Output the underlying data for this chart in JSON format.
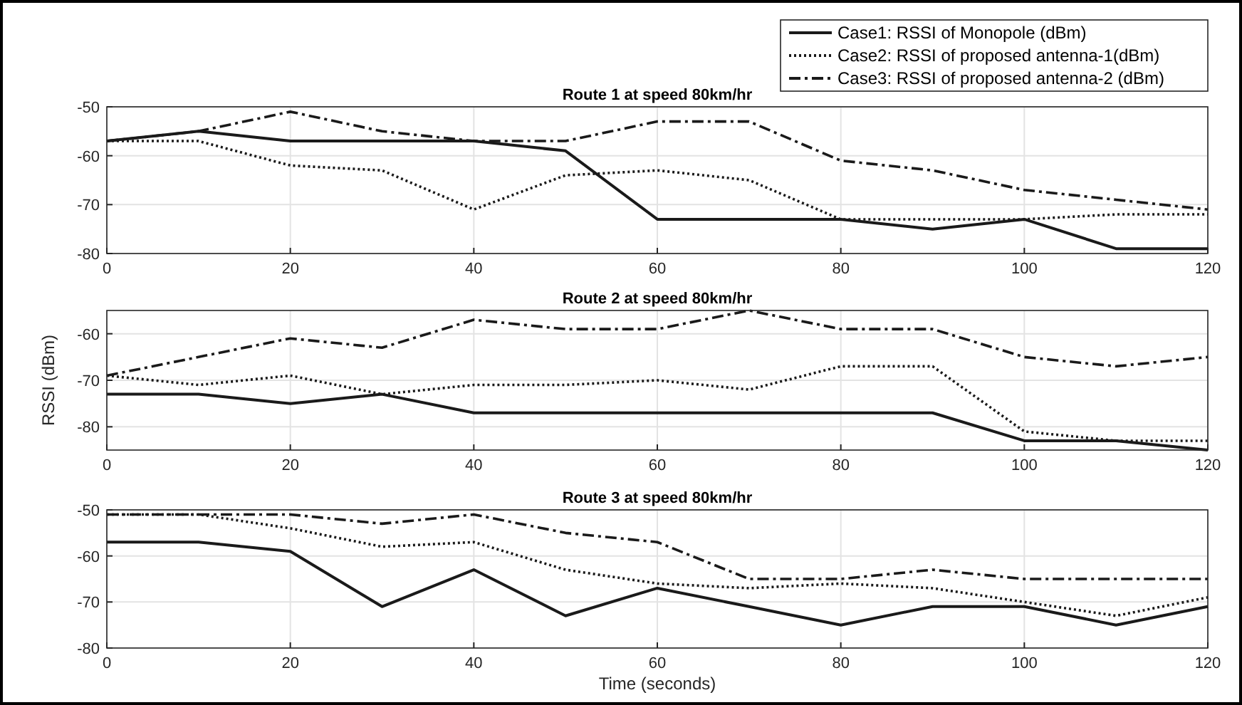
{
  "chart_data": [
    {
      "type": "line",
      "title": "Route 1 at speed 80km/hr",
      "x": [
        0,
        10,
        20,
        30,
        40,
        50,
        60,
        70,
        80,
        90,
        100,
        110,
        120
      ],
      "xlim": [
        0,
        120
      ],
      "xticks": [
        0,
        20,
        40,
        60,
        80,
        100,
        120
      ],
      "ylim": [
        -80,
        -50
      ],
      "yticks": [
        -80,
        -70,
        -60,
        -50
      ],
      "grid": true,
      "legend": "top right",
      "marker": "none",
      "series": [
        {
          "name": "Case1: RSSI of Monopole (dBm)",
          "color": "#1a1a1a",
          "line_style": "solid",
          "values": [
            -57,
            -55,
            -57,
            -57,
            -57,
            -59,
            -73,
            -73,
            -73,
            -75,
            -73,
            -79,
            -79
          ]
        },
        {
          "name": "Case2: RSSI of proposed antenna-1(dBm)",
          "color": "#1a1a1a",
          "line_style": "dotted",
          "values": [
            -57,
            -57,
            -62,
            -63,
            -71,
            -64,
            -63,
            -65,
            -73,
            -73,
            -73,
            -72,
            -72
          ]
        },
        {
          "name": "Case3: RSSI of proposed antenna-2 (dBm)",
          "color": "#1a1a1a",
          "line_style": "dashed",
          "values": [
            -57,
            -55,
            -51,
            -55,
            -57,
            -57,
            -53,
            -53,
            -61,
            -63,
            -67,
            -69,
            -71
          ]
        }
      ]
    },
    {
      "type": "line",
      "title": "Route 2 at speed 80km/hr",
      "ylabel": "RSSI (dBm)",
      "x": [
        0,
        10,
        20,
        30,
        40,
        50,
        60,
        70,
        80,
        90,
        100,
        110,
        120
      ],
      "xlim": [
        0,
        120
      ],
      "xticks": [
        0,
        20,
        40,
        60,
        80,
        100,
        120
      ],
      "ylim": [
        -85,
        -55
      ],
      "yticks": [
        -80,
        -70,
        -60
      ],
      "grid": true,
      "marker": "none",
      "series": [
        {
          "color": "#1a1a1a",
          "line_style": "solid",
          "values": [
            -73,
            -73,
            -75,
            -73,
            -77,
            -77,
            -77,
            -77,
            -77,
            -77,
            -83,
            -83,
            -85
          ]
        },
        {
          "color": "#1a1a1a",
          "line_style": "dotted",
          "values": [
            -69,
            -71,
            -69,
            -73,
            -71,
            -71,
            -70,
            -72,
            -67,
            -67,
            -81,
            -83,
            -83
          ]
        },
        {
          "color": "#1a1a1a",
          "line_style": "dashed",
          "values": [
            -69,
            -65,
            -61,
            -63,
            -57,
            -59,
            -59,
            -55,
            -59,
            -59,
            -65,
            -67,
            -65
          ]
        }
      ]
    },
    {
      "type": "line",
      "title": "Route 3 at speed 80km/hr",
      "xlabel": "Time (seconds)",
      "x": [
        0,
        10,
        20,
        30,
        40,
        50,
        60,
        70,
        80,
        90,
        100,
        110,
        120
      ],
      "xlim": [
        0,
        120
      ],
      "xticks": [
        0,
        20,
        40,
        60,
        80,
        100,
        120
      ],
      "ylim": [
        -80,
        -50
      ],
      "yticks": [
        -80,
        -70,
        -60,
        -50
      ],
      "grid": true,
      "marker": "none",
      "series": [
        {
          "color": "#1a1a1a",
          "line_style": "solid",
          "values": [
            -57,
            -57,
            -59,
            -71,
            -63,
            -73,
            -67,
            -71,
            -75,
            -71,
            -71,
            -75,
            -71
          ]
        },
        {
          "color": "#1a1a1a",
          "line_style": "dotted",
          "values": [
            -51,
            -51,
            -54,
            -58,
            -57,
            -63,
            -66,
            -67,
            -66,
            -67,
            -70,
            -73,
            -69
          ]
        },
        {
          "color": "#1a1a1a",
          "line_style": "dashed",
          "values": [
            -51,
            -51,
            -51,
            -53,
            -51,
            -55,
            -57,
            -65,
            -65,
            -63,
            -65,
            -65,
            -65
          ]
        }
      ]
    }
  ]
}
